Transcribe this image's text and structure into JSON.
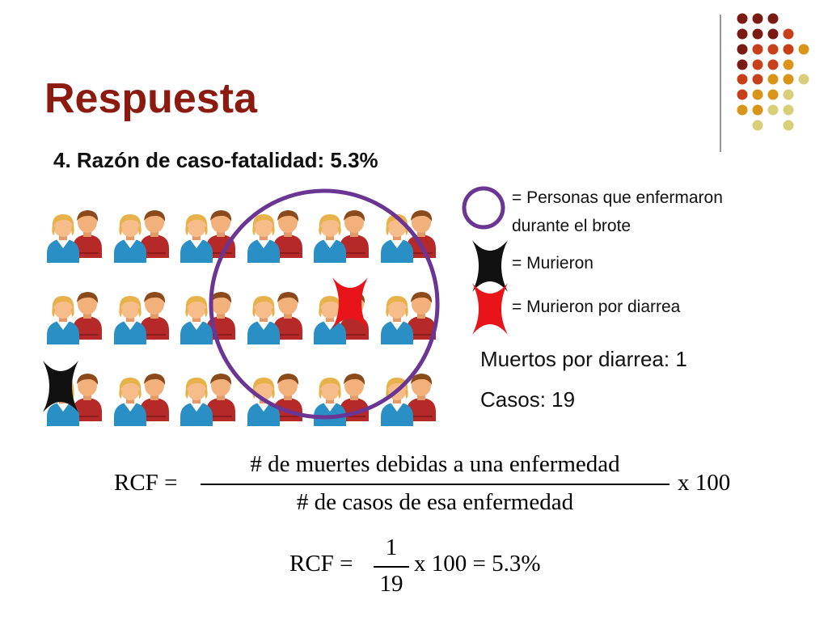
{
  "slide": {
    "title": "Respuesta",
    "subtitle": "4. Razón de caso-fatalidad: 5.3%"
  },
  "legend": {
    "circle_label_line1": "= Personas que enfermaron",
    "circle_label_line2": "durante el brote",
    "black_x_label": "= Murieron",
    "red_x_label": "= Murieron por diarrea"
  },
  "stats": {
    "deaths_diarrhea": "Muertos por diarrea: 1",
    "cases": "Casos: 19"
  },
  "formula1": {
    "lhs": "RCF =",
    "numerator": "# de muertes debidas a una enfermedad",
    "denominator": "# de casos de esa enfermedad",
    "multiplier": "x 100"
  },
  "formula2": {
    "lhs": "RCF =",
    "numerator": "1",
    "denominator": "19",
    "rest": "x 100 = 5.3%"
  },
  "colors": {
    "title": "#8b1a10",
    "circle": "#6a3593",
    "black_x": "#111111",
    "red_x": "#e8141a",
    "person_front_shirt": "#2a8fc4",
    "person_back_shirt": "#b52a28",
    "skin": "#f2b07a",
    "hair_blond": "#e8b24a",
    "hair_brown": "#8a4a1c"
  },
  "icons": {
    "person": "people-pair-icon",
    "circle": "circle-outline-icon",
    "black_x": "black-x-icon",
    "red_x": "red-x-icon"
  }
}
